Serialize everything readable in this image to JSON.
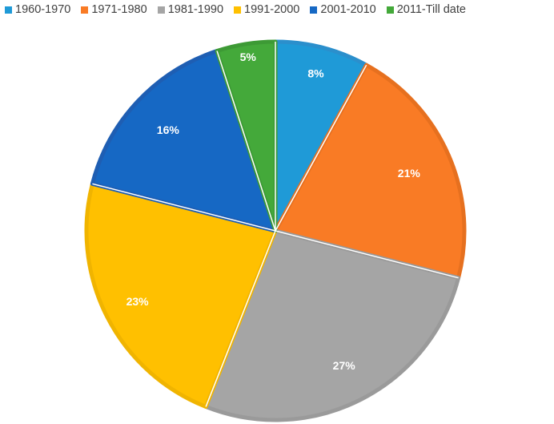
{
  "chart_data": {
    "type": "pie",
    "title": "",
    "legend_position": "top",
    "categories": [
      "1960-1970",
      "1971-1980",
      "1981-1990",
      "1991-2000",
      "2001-2010",
      "2011-Till date"
    ],
    "values": [
      8,
      21,
      27,
      23,
      16,
      5
    ],
    "labels": [
      "8%",
      "21%",
      "27%",
      "23%",
      "16%",
      "5%"
    ],
    "colors": [
      "#1f9ad7",
      "#f97b25",
      "#a5a5a5",
      "#ffc000",
      "#1668c4",
      "#44a93a"
    ],
    "border_colors": [
      "#2b8fcc",
      "#e6701f",
      "#9a9a9a",
      "#f0b400",
      "#1e5eb3",
      "#3d9a35"
    ]
  }
}
